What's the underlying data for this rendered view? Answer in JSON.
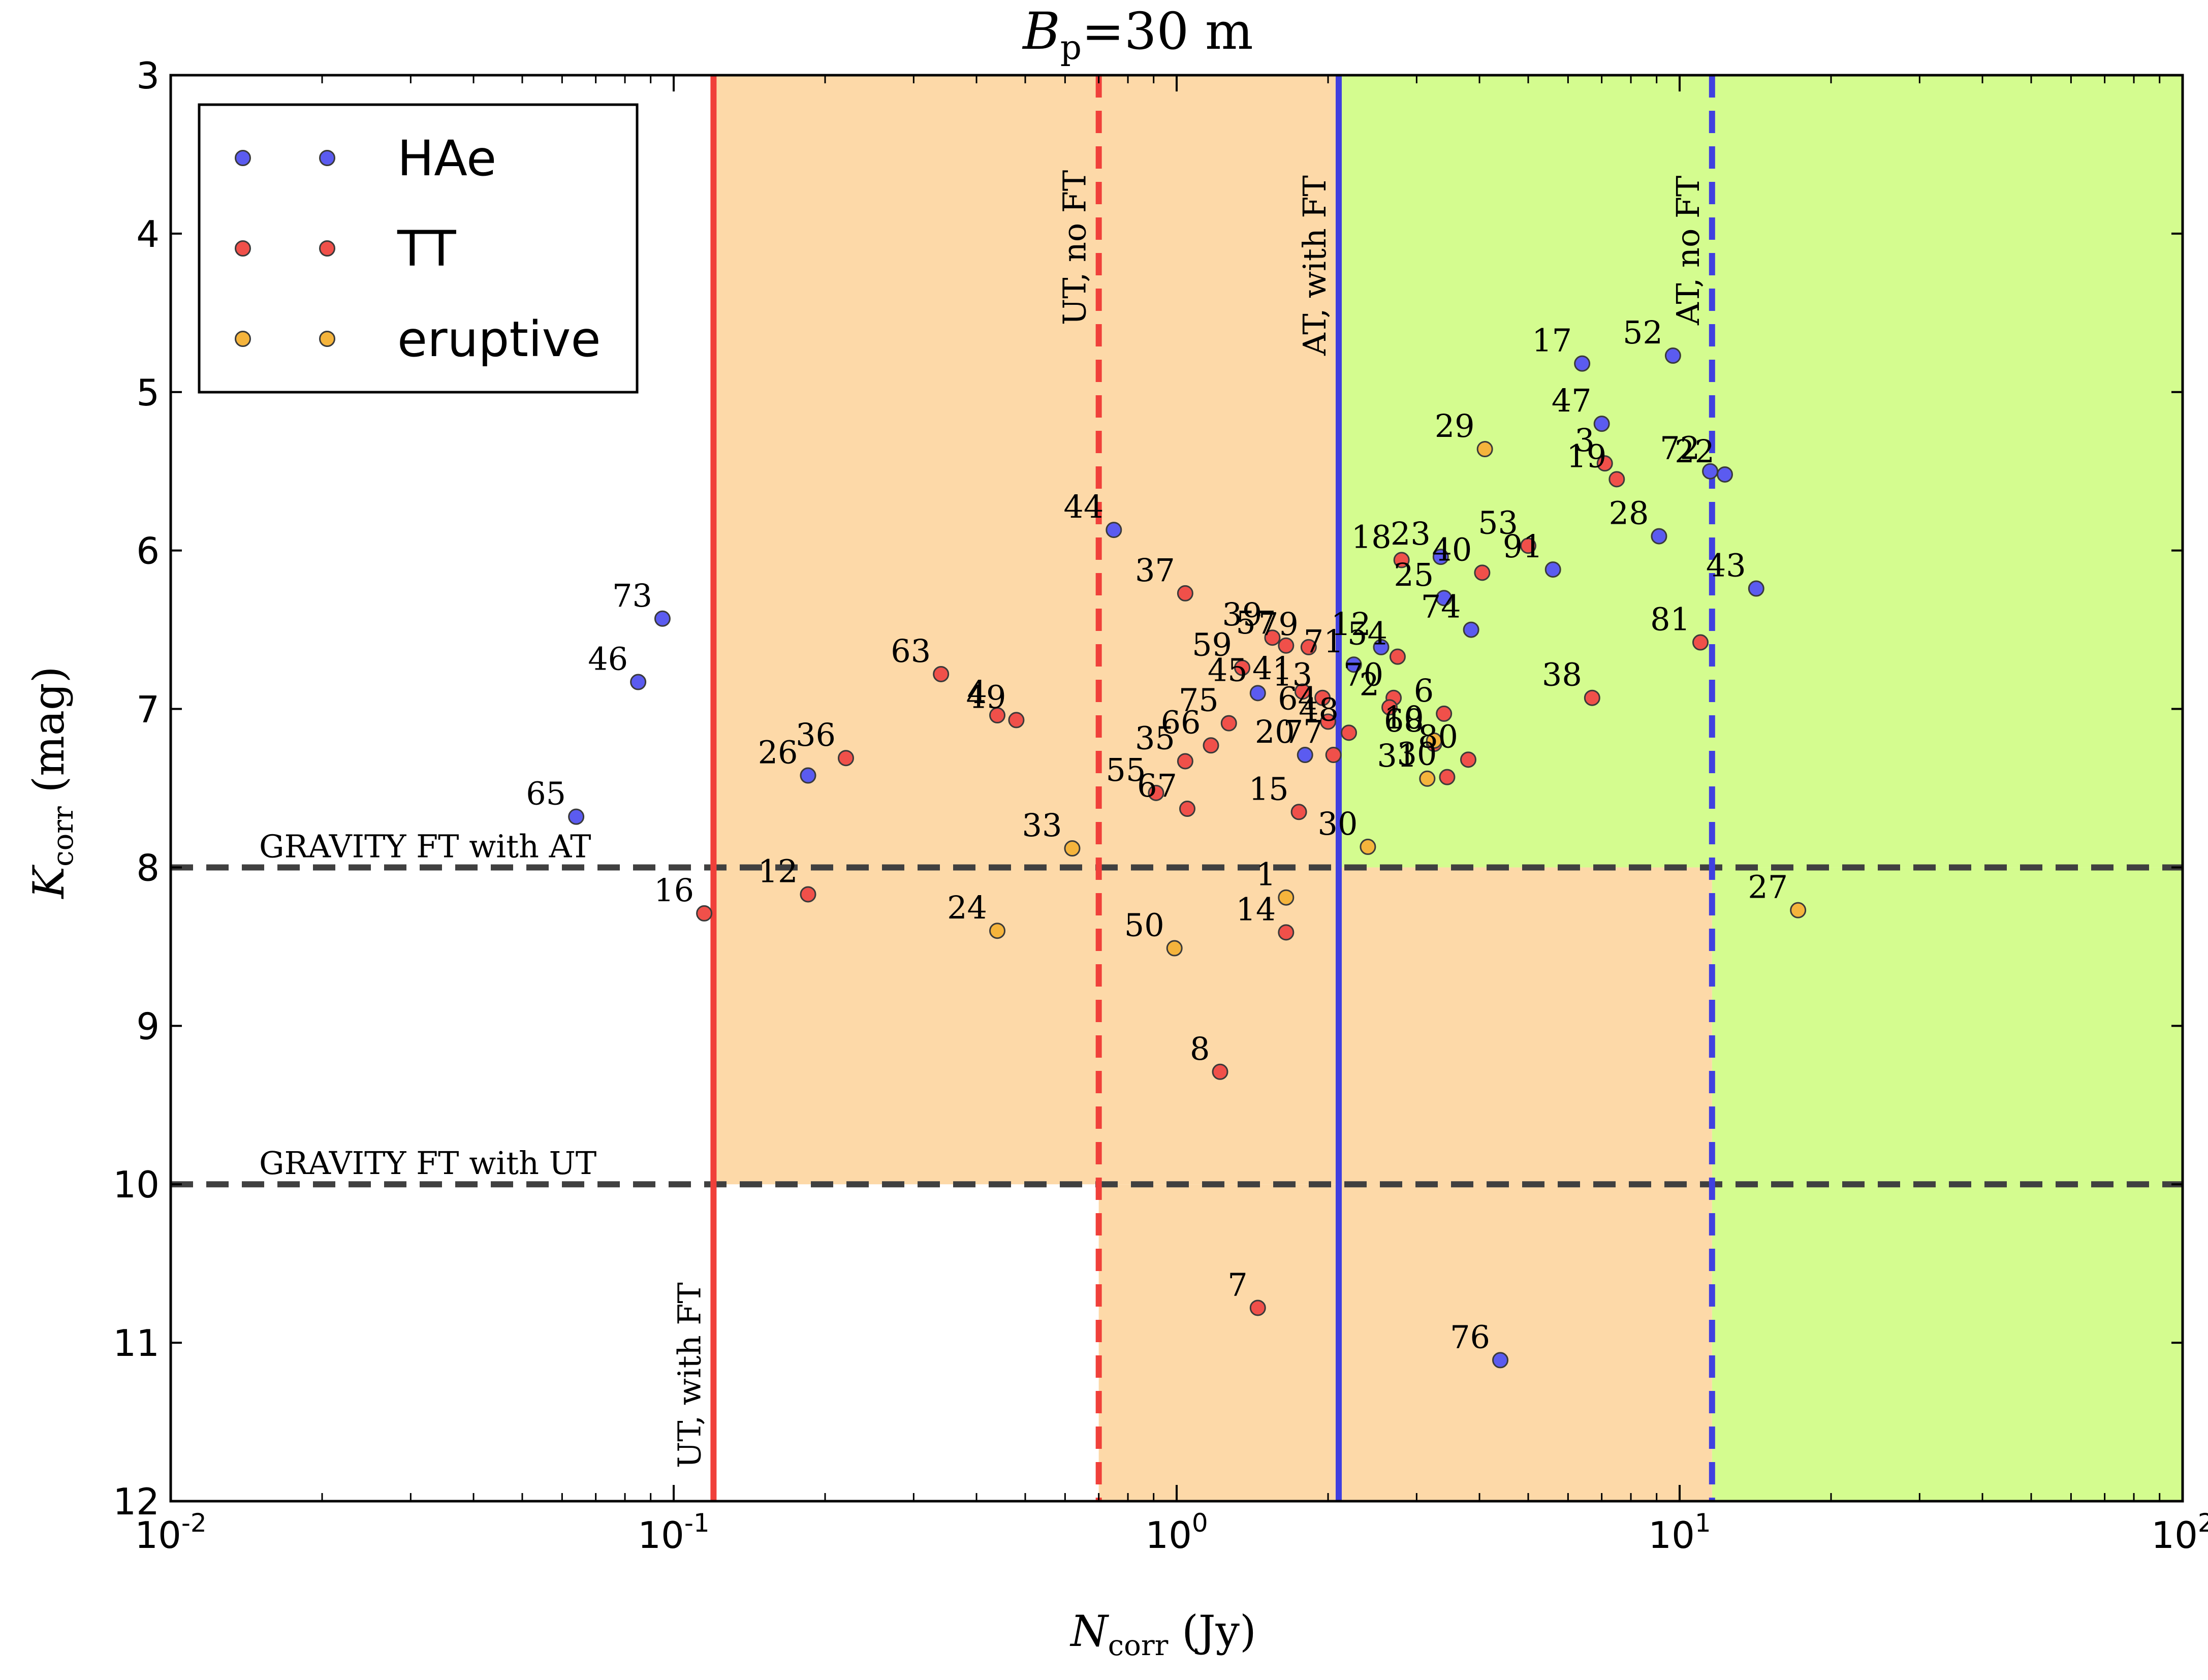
{
  "chart_data": {
    "type": "scatter",
    "title": {
      "var": "B",
      "sub": "p",
      "rest": "=30 m"
    },
    "xlabel": {
      "var": "N",
      "sub": "corr",
      "rest": " (Jy)"
    },
    "ylabel": {
      "var": "K",
      "sub": "corr",
      "rest": " (mag)"
    },
    "xscale": "log",
    "xlim": [
      0.01,
      100
    ],
    "ylim": [
      12,
      3
    ],
    "x_ticks": [
      {
        "value": 0.01,
        "base": "10",
        "exp": "-2"
      },
      {
        "value": 0.1,
        "base": "10",
        "exp": "-1"
      },
      {
        "value": 1,
        "base": "10",
        "exp": "0"
      },
      {
        "value": 10,
        "base": "10",
        "exp": "1"
      },
      {
        "value": 100,
        "base": "10",
        "exp": "2"
      }
    ],
    "y_ticks": [
      "3",
      "4",
      "5",
      "6",
      "7",
      "8",
      "9",
      "10",
      "11",
      "12"
    ],
    "legend_position": "top-left",
    "colors": {
      "HAe": "#5b5bf0",
      "TT": "#f0504a",
      "eruptive": "#f5b43c",
      "orange_region": "#fdd9a8",
      "green_region": "#d4fc8f"
    },
    "legend": [
      {
        "name": "HAe",
        "color": "#5b5bf0"
      },
      {
        "name": "TT",
        "color": "#f0504a"
      },
      {
        "name": "eruptive",
        "color": "#f5b43c"
      }
    ],
    "reference_lines": {
      "horizontal": [
        {
          "y": 8,
          "label": "GRAVITY FT with AT",
          "style": "dashed",
          "color": "#404040"
        },
        {
          "y": 10,
          "label": "GRAVITY FT with UT",
          "style": "dashed",
          "color": "#404040"
        }
      ],
      "vertical": [
        {
          "x": 0.12,
          "label": "UT, with FT",
          "style": "solid",
          "color": "#f0403a"
        },
        {
          "x": 0.7,
          "label": "UT, no FT",
          "style": "dashed",
          "color": "#f0403a"
        },
        {
          "x": 2.1,
          "label": "AT, with FT",
          "style": "solid",
          "color": "#4040e0"
        },
        {
          "x": 11.6,
          "label": "AT, no FT",
          "style": "dashed",
          "color": "#4040e0"
        }
      ]
    },
    "regions": [
      {
        "fill": "orange",
        "x": [
          0.12,
          2.1
        ],
        "y": [
          3,
          10
        ]
      },
      {
        "fill": "orange",
        "x": [
          0.7,
          2.1
        ],
        "y": [
          10,
          12
        ]
      },
      {
        "fill": "orange",
        "x": [
          2.1,
          11.6
        ],
        "y": [
          8,
          12
        ]
      },
      {
        "fill": "green",
        "x": [
          2.1,
          100
        ],
        "y": [
          3,
          8
        ]
      },
      {
        "fill": "green",
        "x": [
          11.6,
          100
        ],
        "y": [
          8,
          12
        ]
      }
    ],
    "series": [
      {
        "name": "HAe",
        "points": [
          {
            "label": "73",
            "x": 0.095,
            "y": 6.43
          },
          {
            "label": "46",
            "x": 0.085,
            "y": 6.83
          },
          {
            "label": "65",
            "x": 0.064,
            "y": 7.68
          },
          {
            "label": "26",
            "x": 0.185,
            "y": 7.42
          },
          {
            "label": "44",
            "x": 0.75,
            "y": 5.87
          },
          {
            "label": "45",
            "x": 1.45,
            "y": 6.9
          },
          {
            "label": "20",
            "x": 1.8,
            "y": 7.29
          },
          {
            "label": "71",
            "x": 2.25,
            "y": 6.72
          },
          {
            "label": "12",
            "x": 2.55,
            "y": 6.61
          },
          {
            "label": "23",
            "x": 3.35,
            "y": 6.04
          },
          {
            "label": "25",
            "x": 3.4,
            "y": 6.3
          },
          {
            "label": "74",
            "x": 3.85,
            "y": 6.5
          },
          {
            "label": "91",
            "x": 5.6,
            "y": 6.12
          },
          {
            "label": "17",
            "x": 6.4,
            "y": 4.82
          },
          {
            "label": "52",
            "x": 9.7,
            "y": 4.77
          },
          {
            "label": "47",
            "x": 7.0,
            "y": 5.2
          },
          {
            "label": "28",
            "x": 9.1,
            "y": 5.91
          },
          {
            "label": "72",
            "x": 11.5,
            "y": 5.5
          },
          {
            "label": "22",
            "x": 12.3,
            "y": 5.52
          },
          {
            "label": "43",
            "x": 14.2,
            "y": 6.24
          },
          {
            "label": "76",
            "x": 4.4,
            "y": 11.11
          }
        ]
      },
      {
        "name": "TT",
        "points": [
          {
            "label": "16",
            "x": 0.115,
            "y": 8.29
          },
          {
            "label": "12",
            "x": 0.185,
            "y": 8.17
          },
          {
            "label": "36",
            "x": 0.22,
            "y": 7.31
          },
          {
            "label": "63",
            "x": 0.34,
            "y": 6.78
          },
          {
            "label": "4",
            "x": 0.44,
            "y": 7.04
          },
          {
            "label": "49",
            "x": 0.48,
            "y": 7.07
          },
          {
            "label": "37",
            "x": 1.04,
            "y": 6.27
          },
          {
            "label": "59",
            "x": 1.35,
            "y": 6.74
          },
          {
            "label": "75",
            "x": 1.27,
            "y": 7.09
          },
          {
            "label": "66",
            "x": 1.17,
            "y": 7.23
          },
          {
            "label": "35",
            "x": 1.04,
            "y": 7.33
          },
          {
            "label": "55",
            "x": 0.91,
            "y": 7.53
          },
          {
            "label": "67",
            "x": 1.05,
            "y": 7.63
          },
          {
            "label": "39",
            "x": 1.55,
            "y": 6.55
          },
          {
            "label": "57",
            "x": 1.65,
            "y": 6.6
          },
          {
            "label": "79",
            "x": 1.83,
            "y": 6.61
          },
          {
            "label": "41",
            "x": 1.78,
            "y": 6.89
          },
          {
            "label": "13",
            "x": 1.95,
            "y": 6.93
          },
          {
            "label": "64",
            "x": 2.0,
            "y": 7.08
          },
          {
            "label": "48",
            "x": 2.2,
            "y": 7.15
          },
          {
            "label": "77",
            "x": 2.05,
            "y": 7.29
          },
          {
            "label": "15",
            "x": 1.75,
            "y": 7.65
          },
          {
            "label": "14",
            "x": 1.65,
            "y": 8.41
          },
          {
            "label": "8",
            "x": 1.22,
            "y": 9.29
          },
          {
            "label": "7",
            "x": 1.45,
            "y": 10.78
          },
          {
            "label": "18",
            "x": 2.8,
            "y": 6.06
          },
          {
            "label": "54",
            "x": 2.75,
            "y": 6.67
          },
          {
            "label": "70",
            "x": 2.7,
            "y": 6.93
          },
          {
            "label": "2",
            "x": 2.65,
            "y": 6.99
          },
          {
            "label": "6",
            "x": 3.4,
            "y": 7.03
          },
          {
            "label": "68",
            "x": 3.25,
            "y": 7.22
          },
          {
            "label": "30",
            "x": 3.45,
            "y": 7.43
          },
          {
            "label": "80",
            "x": 3.8,
            "y": 7.32
          },
          {
            "label": "40",
            "x": 4.05,
            "y": 6.14
          },
          {
            "label": "53",
            "x": 5.0,
            "y": 5.97
          },
          {
            "label": "3",
            "x": 7.1,
            "y": 5.45
          },
          {
            "label": "19",
            "x": 7.5,
            "y": 5.55
          },
          {
            "label": "38",
            "x": 6.7,
            "y": 6.93
          },
          {
            "label": "81",
            "x": 11.0,
            "y": 6.58
          }
        ]
      },
      {
        "name": "eruptive",
        "points": [
          {
            "label": "33",
            "x": 0.62,
            "y": 7.88
          },
          {
            "label": "24",
            "x": 0.44,
            "y": 8.4
          },
          {
            "label": "50",
            "x": 0.99,
            "y": 8.51
          },
          {
            "label": "1",
            "x": 1.65,
            "y": 8.19
          },
          {
            "label": "30",
            "x": 2.4,
            "y": 7.87
          },
          {
            "label": "31",
            "x": 3.15,
            "y": 7.44
          },
          {
            "label": "10",
            "x": 3.25,
            "y": 7.2
          },
          {
            "label": "29",
            "x": 4.1,
            "y": 5.36
          },
          {
            "label": "27",
            "x": 17.2,
            "y": 8.27
          }
        ]
      }
    ]
  }
}
